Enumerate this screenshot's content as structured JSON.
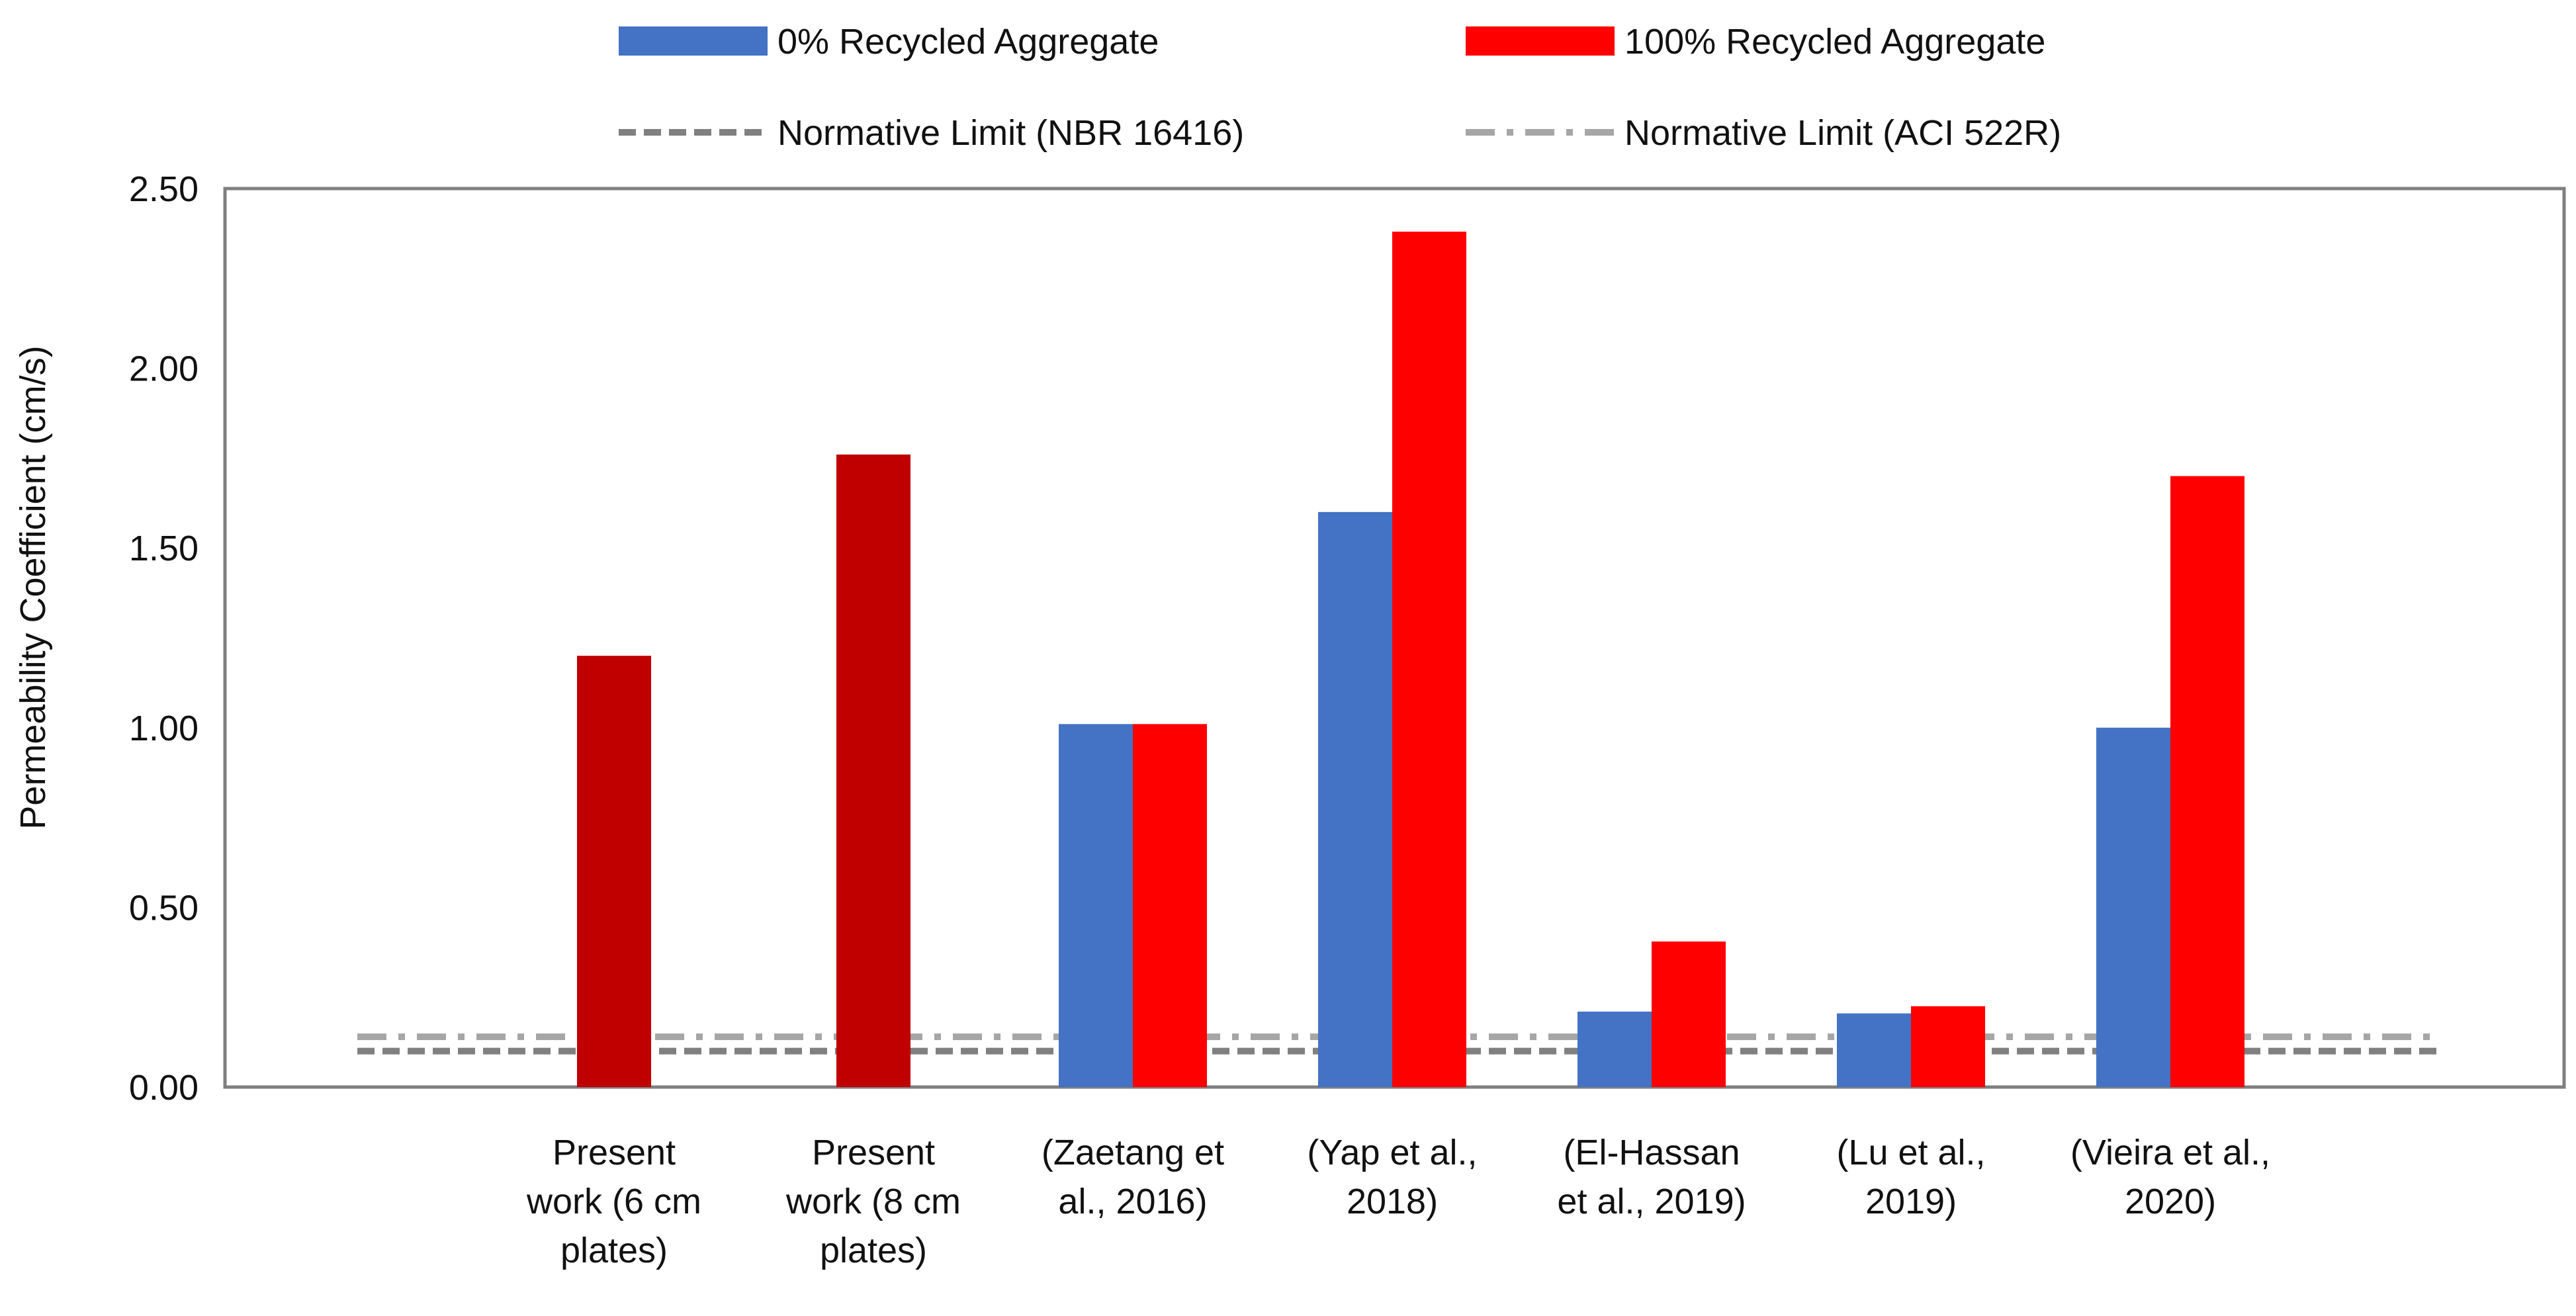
{
  "chart_data": {
    "type": "bar",
    "title": "",
    "xlabel": "",
    "ylabel": "Permeability Coefficient (cm/s)",
    "ylim": [
      0,
      2.5
    ],
    "yticks": [
      "0.00",
      "0.50",
      "1.00",
      "1.50",
      "2.00",
      "2.50"
    ],
    "grid": false,
    "legend_position": "top",
    "categories": [
      [
        "Present",
        "work (6 cm",
        "plates)"
      ],
      [
        "Present",
        "work (8 cm",
        "plates)"
      ],
      [
        "(Zaetang et",
        "al., 2016)"
      ],
      [
        "(Yap et al.,",
        "2018)"
      ],
      [
        "(El-Hassan",
        "et al., 2019)"
      ],
      [
        "(Lu et al.,",
        "2019)"
      ],
      [
        "(Vieira et al.,",
        "2020)"
      ]
    ],
    "series": [
      {
        "name": "0% Recycled Aggregate",
        "color": "#4472C4",
        "values": [
          null,
          null,
          1.01,
          1.6,
          0.21,
          0.205,
          1.0
        ]
      },
      {
        "name": "100% Recycled Aggregate",
        "color": "#FF0000",
        "values": [
          1.2,
          1.76,
          1.01,
          2.38,
          0.405,
          0.225,
          1.7
        ]
      }
    ],
    "present_work_color": "#C00000",
    "reference_lines": [
      {
        "name": "Normative Limit (NBR 16416)",
        "value": 0.1,
        "color": "#808080",
        "style": "dashed"
      },
      {
        "name": "Normative Limit (ACI 522R)",
        "value": 0.14,
        "color": "#A6A6A6",
        "style": "dash-dot"
      }
    ]
  }
}
